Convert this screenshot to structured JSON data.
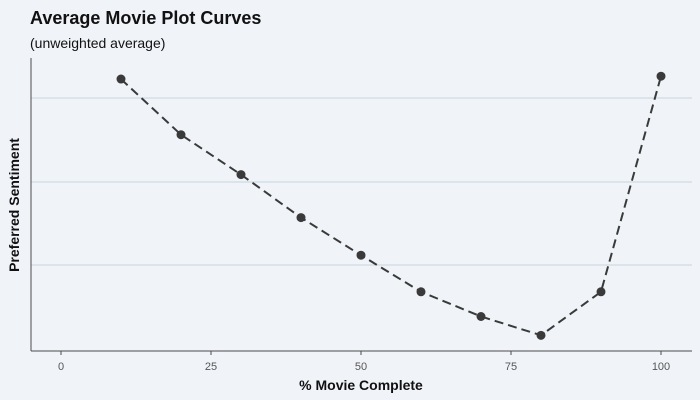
{
  "colors": {
    "background": "#f0f4f9",
    "grid": "#c9d3dd",
    "axis": "#4a4a4a",
    "series": "#3a3a3a"
  },
  "chart_data": {
    "type": "line",
    "title": "Average Movie Plot Curves",
    "subtitle": "(unweighted average)",
    "xlabel": "% Movie Complete",
    "ylabel": "Preferred Sentiment",
    "xlim": [
      -5,
      105
    ],
    "ylim": [
      0,
      1
    ],
    "x_ticks": [
      0,
      25,
      50,
      75,
      100
    ],
    "y_ticks_labeled": false,
    "grid": "horizontal",
    "line_style": "dashed",
    "marker": "circle",
    "series": [
      {
        "x": [
          10,
          20,
          30,
          40,
          50,
          60,
          70,
          80,
          90,
          100
        ],
        "values": [
          0.95,
          0.752,
          0.61,
          0.457,
          0.323,
          0.193,
          0.105,
          0.038,
          0.193,
          0.96
        ]
      }
    ]
  }
}
